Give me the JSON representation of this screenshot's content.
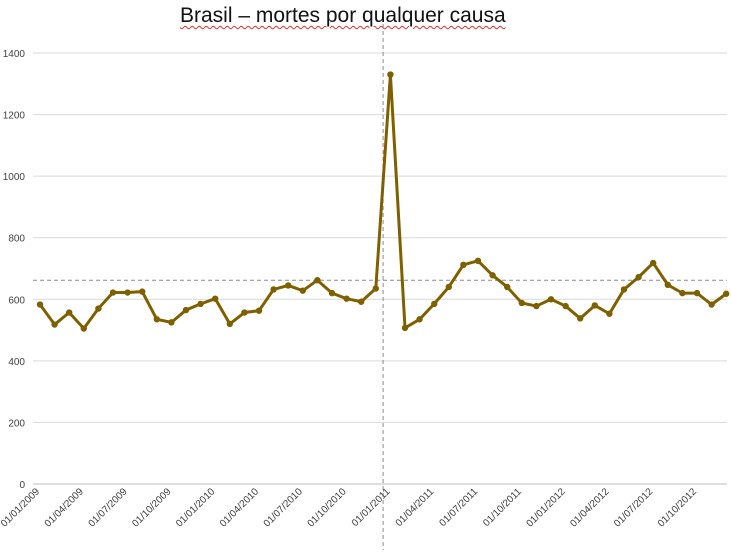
{
  "chart_data": {
    "type": "line",
    "title": "Brasil – mortes por qualquer causa",
    "xlabel": "",
    "ylabel": "",
    "ylim": [
      0,
      1400
    ],
    "yticks": [
      0,
      200,
      400,
      600,
      800,
      1000,
      1200,
      1400
    ],
    "grid": true,
    "legend": "none",
    "x_tick_labels": [
      "01/01/2009",
      "01/04/2009",
      "01/07/2009",
      "01/10/2009",
      "01/01/2010",
      "01/04/2010",
      "01/07/2010",
      "01/10/2010",
      "01/01/2011",
      "01/04/2011",
      "01/07/2011",
      "01/10/2011",
      "01/01/2012",
      "01/04/2012",
      "01/07/2012",
      "01/10/2012"
    ],
    "x_tick_months": [
      0,
      3,
      6,
      9,
      12,
      15,
      18,
      21,
      24,
      27,
      30,
      33,
      36,
      39,
      42,
      45
    ],
    "x_months": [
      0,
      1,
      2,
      3,
      4,
      5,
      6,
      7,
      8,
      9,
      10,
      11,
      12,
      13,
      14,
      15,
      16,
      17,
      18,
      19,
      20,
      21,
      22,
      23,
      24,
      25,
      26,
      27,
      28,
      29,
      30,
      31,
      32,
      33,
      34,
      35,
      36,
      37,
      38,
      39,
      40,
      41,
      42,
      43,
      44,
      45,
      46,
      47
    ],
    "series": [
      {
        "color": "#7f6000",
        "values": [
          583,
          518,
          557,
          505,
          570,
          622,
          622,
          625,
          535,
          525,
          565,
          585,
          602,
          520,
          557,
          563,
          632,
          645,
          628,
          662,
          620,
          602,
          592,
          635,
          1330,
          507,
          535,
          585,
          640,
          712,
          725,
          678,
          640,
          588,
          578,
          600,
          578,
          538,
          580,
          553,
          632,
          672,
          718,
          647,
          620,
          620,
          583,
          618
        ]
      }
    ],
    "reference_lines": {
      "horizontal_value": 662,
      "vertical_month": 23.5,
      "style": "dashed",
      "color": "#8c8c8c"
    }
  }
}
